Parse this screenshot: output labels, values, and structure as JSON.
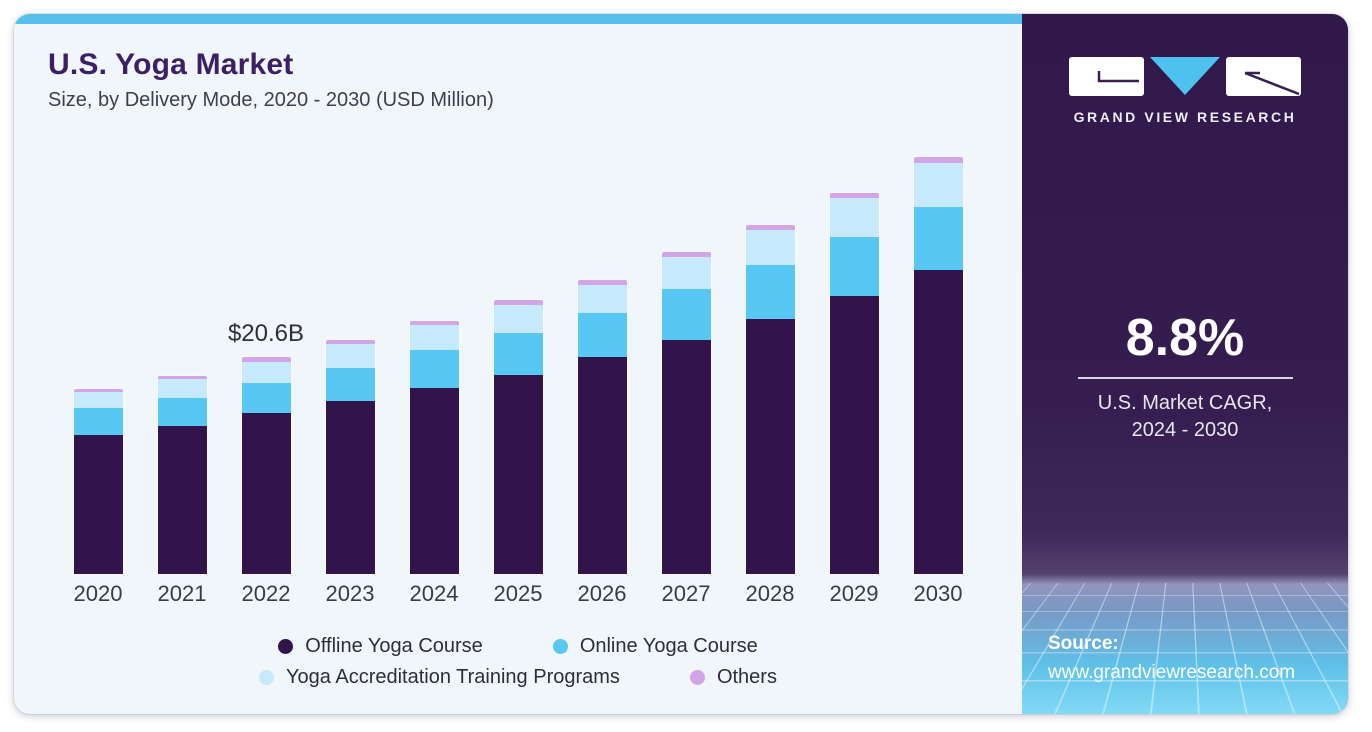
{
  "header": {
    "title": "U.S. Yoga Market",
    "subtitle": "Size, by Delivery Mode, 2020 - 2030 (USD Million)"
  },
  "chart_data": {
    "type": "bar",
    "stacked": true,
    "title": "U.S. Yoga Market",
    "subtitle": "Size, by Delivery Mode, 2020 - 2030 (USD Million)",
    "unit": "USD Million",
    "categories": [
      "2020",
      "2021",
      "2022",
      "2023",
      "2024",
      "2025",
      "2026",
      "2027",
      "2028",
      "2029",
      "2030"
    ],
    "series": [
      {
        "name": "Offline Yoga Course",
        "color": "#33134b",
        "values": [
          13210,
          14070,
          15270,
          16450,
          17650,
          18920,
          20630,
          22220,
          24270,
          26460,
          28900
        ]
      },
      {
        "name": "Online Yoga Course",
        "color": "#58c7f3",
        "values": [
          2540,
          2690,
          2910,
          3110,
          3640,
          4020,
          4150,
          4850,
          5130,
          5580,
          6020
        ]
      },
      {
        "name": "Yoga Accreditation Training Programs",
        "color": "#c6e9fb",
        "values": [
          1520,
          1750,
          2000,
          2280,
          2380,
          2630,
          2690,
          3100,
          3300,
          3680,
          4180
        ]
      },
      {
        "name": "Others",
        "color": "#d4a4e8",
        "values": [
          310,
          330,
          420,
          410,
          400,
          470,
          480,
          440,
          480,
          530,
          570
        ]
      }
    ],
    "totals": [
      17580,
      18840,
      20600,
      22250,
      24070,
      26040,
      27950,
      30610,
      33180,
      36250,
      39670
    ],
    "annotation": {
      "category": "2022",
      "text": "$20.6B"
    },
    "legend_position": "bottom",
    "legend_rows": [
      [
        0,
        1
      ],
      [
        2,
        3
      ]
    ],
    "y_axis_visible": false,
    "grid": false,
    "ylim": [
      0,
      40000
    ]
  },
  "sidebar": {
    "logo_text": "GRAND VIEW RESEARCH",
    "cagr_value": "8.8%",
    "cagr_line1": "U.S. Market CAGR,",
    "cagr_line2": "2024 - 2030",
    "source_label": "Source:",
    "source_url": "www.grandviewresearch.com"
  },
  "ui_colors": {
    "accent_strip": "#56c0ea",
    "card_bg": "#f0f6fa",
    "sidebar_bg": "#341c4e",
    "title_text": "#3b2065",
    "body_text": "#3c3b45",
    "logo_triangle": "#4ec2ee",
    "mesh_blue": "#82daf5"
  }
}
